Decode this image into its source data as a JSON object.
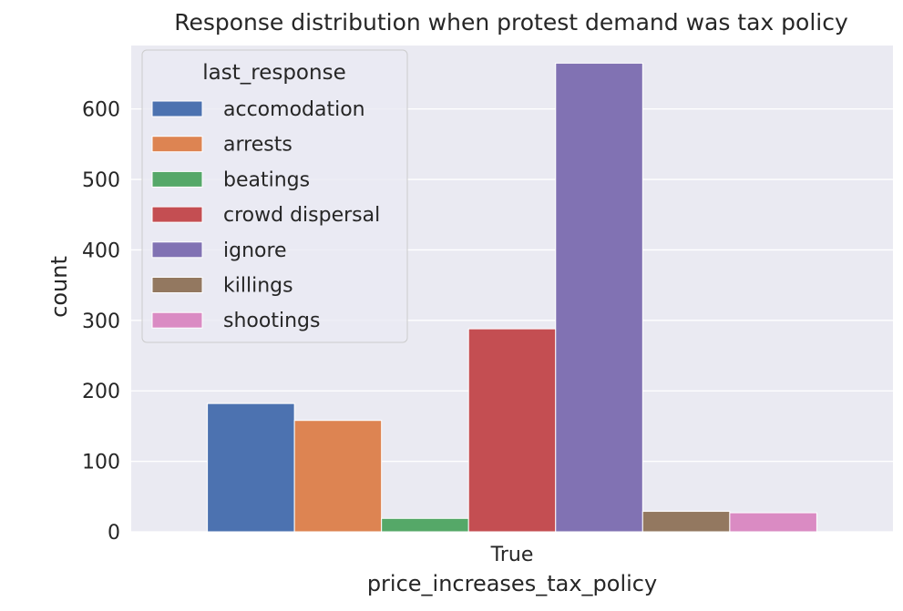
{
  "chart_data": {
    "type": "bar",
    "title": "Response distribution when protest demand was tax policy",
    "xlabel": "price_increases_tax_policy",
    "ylabel": "count",
    "categories": [
      "True"
    ],
    "ylim": [
      0,
      690
    ],
    "yticks": [
      0,
      100,
      200,
      300,
      400,
      500,
      600
    ],
    "grid": true,
    "legend": {
      "title": "last_response",
      "placement": "top-left"
    },
    "series": [
      {
        "name": "accomodation",
        "values": [
          182
        ],
        "color": "#4c72b0"
      },
      {
        "name": "arrests",
        "values": [
          158
        ],
        "color": "#dd8452"
      },
      {
        "name": "beatings",
        "values": [
          19
        ],
        "color": "#55a868"
      },
      {
        "name": "crowd dispersal",
        "values": [
          288
        ],
        "color": "#c44e52"
      },
      {
        "name": "ignore",
        "values": [
          665
        ],
        "color": "#8172b3"
      },
      {
        "name": "killings",
        "values": [
          29
        ],
        "color": "#937860"
      },
      {
        "name": "shootings",
        "values": [
          27
        ],
        "color": "#da8bc3"
      }
    ],
    "colors": {
      "plot_background": "#eaeaf2",
      "grid": "#ffffff"
    }
  }
}
